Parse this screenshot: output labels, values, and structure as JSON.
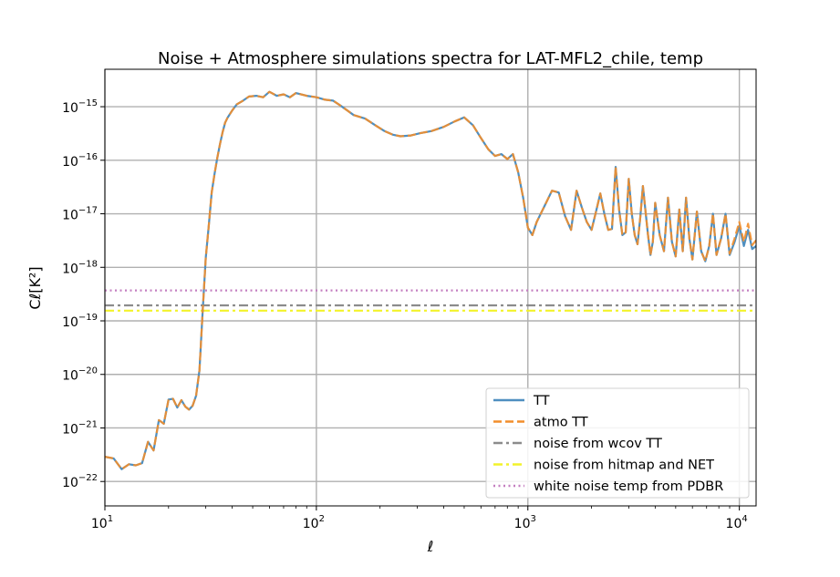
{
  "chart_data": {
    "type": "line",
    "title": "Noise + Atmosphere simulations spectra for LAT-MFL2_chile, temp",
    "xlabel": "ℓ",
    "ylabel": "Cℓ[K²]",
    "xscale": "log",
    "yscale": "log",
    "xlim": [
      10,
      12000
    ],
    "ylim": [
      3.5e-23,
      5e-15
    ],
    "grid": true,
    "legend_position": "lower-right",
    "x_ticks": [
      {
        "base": "10",
        "exp": "1",
        "value": 10
      },
      {
        "base": "10",
        "exp": "2",
        "value": 100
      },
      {
        "base": "10",
        "exp": "3",
        "value": 1000
      },
      {
        "base": "10",
        "exp": "4",
        "value": 10000
      }
    ],
    "y_ticks": [
      {
        "base": "10",
        "exp": "−22",
        "value": 1e-22
      },
      {
        "base": "10",
        "exp": "−21",
        "value": 1e-21
      },
      {
        "base": "10",
        "exp": "−20",
        "value": 1e-20
      },
      {
        "base": "10",
        "exp": "−19",
        "value": 1e-19
      },
      {
        "base": "10",
        "exp": "−18",
        "value": 1e-18
      },
      {
        "base": "10",
        "exp": "−17",
        "value": 1e-17
      },
      {
        "base": "10",
        "exp": "−16",
        "value": 1e-16
      },
      {
        "base": "10",
        "exp": "−15",
        "value": 1e-15
      }
    ],
    "series": [
      {
        "name": "TT",
        "color": "#4f8fc0",
        "style": "solid",
        "x": [
          10,
          11,
          12,
          13,
          14,
          15,
          16,
          17,
          18,
          19,
          20,
          21,
          22,
          23,
          24,
          25,
          26,
          27,
          28,
          29,
          30,
          31,
          32,
          33,
          34,
          35,
          36,
          37,
          38,
          40,
          42,
          45,
          48,
          52,
          56,
          60,
          65,
          70,
          75,
          80,
          90,
          100,
          110,
          120,
          130,
          140,
          150,
          170,
          190,
          210,
          230,
          250,
          280,
          310,
          350,
          400,
          450,
          500,
          550,
          600,
          650,
          700,
          750,
          800,
          850,
          900,
          950,
          1000,
          1050,
          1100,
          1200,
          1300,
          1400,
          1500,
          1600,
          1700,
          1800,
          1900,
          2000,
          2100,
          2200,
          2300,
          2400,
          2500,
          2600,
          2700,
          2800,
          2900,
          3000,
          3100,
          3200,
          3300,
          3400,
          3500,
          3600,
          3700,
          3800,
          3900,
          4000,
          4200,
          4400,
          4600,
          4800,
          5000,
          5200,
          5400,
          5600,
          5800,
          6000,
          6300,
          6600,
          6900,
          7200,
          7500,
          7800,
          8200,
          8600,
          9000,
          9500,
          10000,
          10500,
          11000,
          11500,
          12000
        ],
        "values": [
          2.9e-22,
          2.7e-22,
          1.7e-22,
          2.1e-22,
          2e-22,
          2.2e-22,
          5.5e-22,
          3.8e-22,
          1.4e-21,
          1.2e-21,
          3.4e-21,
          3.5e-21,
          2.4e-21,
          3.3e-21,
          2.5e-21,
          2.2e-21,
          2.6e-21,
          4e-21,
          1.2e-20,
          1.5e-19,
          1.5e-18,
          6e-18,
          2.5e-17,
          5.5e-17,
          1.1e-16,
          2e-16,
          3.3e-16,
          5e-16,
          6.2e-16,
          8.5e-16,
          1.1e-15,
          1.3e-15,
          1.55e-15,
          1.6e-15,
          1.5e-15,
          1.9e-15,
          1.6e-15,
          1.7e-15,
          1.5e-15,
          1.8e-15,
          1.6e-15,
          1.5e-15,
          1.35e-15,
          1.3e-15,
          1.05e-15,
          8.5e-16,
          7e-16,
          6e-16,
          4.5e-16,
          3.5e-16,
          3e-16,
          2.8e-16,
          2.9e-16,
          3.2e-16,
          3.5e-16,
          4.2e-16,
          5.3e-16,
          6.3e-16,
          4.5e-16,
          2.6e-16,
          1.6e-16,
          1.2e-16,
          1.3e-16,
          1.05e-16,
          1.3e-16,
          6e-17,
          2e-17,
          5.5e-18,
          4e-18,
          7e-18,
          1.4e-17,
          2.7e-17,
          2.5e-17,
          9e-18,
          5e-18,
          2.7e-17,
          1.3e-17,
          7e-18,
          5e-18,
          1.1e-17,
          2.4e-17,
          1e-17,
          5e-18,
          5.2e-18,
          7.5e-17,
          1.2e-17,
          4e-18,
          4.5e-18,
          4.5e-17,
          1e-17,
          4e-18,
          2.7e-18,
          8.5e-18,
          3.3e-17,
          1.1e-17,
          4e-18,
          1.7e-18,
          3e-18,
          1.6e-17,
          4e-18,
          2e-18,
          2e-17,
          3e-18,
          1.6e-18,
          1.2e-17,
          2e-18,
          2e-17,
          3.5e-18,
          1.4e-18,
          1.1e-17,
          2e-18,
          1.3e-18,
          2.5e-18,
          1e-17,
          1.7e-18,
          3.5e-18,
          1e-17,
          1.7e-18,
          3e-18,
          6e-18,
          2.5e-18,
          5e-18,
          2.2e-18,
          2.5e-18
        ]
      },
      {
        "name": "atmo TT",
        "color": "#f28e2b",
        "style": "dashed",
        "x": [
          10,
          11,
          12,
          13,
          14,
          15,
          16,
          17,
          18,
          19,
          20,
          21,
          22,
          23,
          24,
          25,
          26,
          27,
          28,
          29,
          30,
          31,
          32,
          33,
          34,
          35,
          36,
          37,
          38,
          40,
          42,
          45,
          48,
          52,
          56,
          60,
          65,
          70,
          75,
          80,
          90,
          100,
          110,
          120,
          130,
          140,
          150,
          170,
          190,
          210,
          230,
          250,
          280,
          310,
          350,
          400,
          450,
          500,
          550,
          600,
          650,
          700,
          750,
          800,
          850,
          900,
          950,
          1000,
          1050,
          1100,
          1200,
          1300,
          1400,
          1500,
          1600,
          1700,
          1800,
          1900,
          2000,
          2100,
          2200,
          2300,
          2400,
          2500,
          2600,
          2700,
          2800,
          2900,
          3000,
          3100,
          3200,
          3300,
          3400,
          3500,
          3600,
          3700,
          3800,
          3900,
          4000,
          4200,
          4400,
          4600,
          4800,
          5000,
          5200,
          5400,
          5600,
          5800,
          6000,
          6300,
          6600,
          6900,
          7200,
          7500,
          7800,
          8200,
          8600,
          9000,
          9500,
          10000,
          10500,
          11000,
          11500,
          12000
        ],
        "values": [
          2.9e-22,
          2.7e-22,
          1.7e-22,
          2.1e-22,
          2e-22,
          2.2e-22,
          5.5e-22,
          3.8e-22,
          1.4e-21,
          1.2e-21,
          3.4e-21,
          3.5e-21,
          2.4e-21,
          3.3e-21,
          2.5e-21,
          2.2e-21,
          2.6e-21,
          4e-21,
          1.2e-20,
          1.5e-19,
          1.5e-18,
          6e-18,
          2.5e-17,
          5.5e-17,
          1.1e-16,
          2e-16,
          3.3e-16,
          5e-16,
          6.2e-16,
          8.5e-16,
          1.1e-15,
          1.3e-15,
          1.55e-15,
          1.6e-15,
          1.5e-15,
          1.9e-15,
          1.6e-15,
          1.7e-15,
          1.5e-15,
          1.8e-15,
          1.6e-15,
          1.5e-15,
          1.35e-15,
          1.3e-15,
          1.05e-15,
          8.5e-16,
          7e-16,
          6e-16,
          4.5e-16,
          3.5e-16,
          3e-16,
          2.8e-16,
          2.9e-16,
          3.2e-16,
          3.5e-16,
          4.2e-16,
          5.3e-16,
          6.3e-16,
          4.5e-16,
          2.6e-16,
          1.6e-16,
          1.2e-16,
          1.3e-16,
          1.05e-16,
          1.3e-16,
          6e-17,
          2e-17,
          5.5e-18,
          4e-18,
          7e-18,
          1.4e-17,
          2.7e-17,
          2.5e-17,
          9e-18,
          5e-18,
          2.7e-17,
          1.3e-17,
          7e-18,
          5e-18,
          1.1e-17,
          2.4e-17,
          1e-17,
          5e-18,
          5.2e-18,
          7.5e-17,
          1.2e-17,
          4e-18,
          4.5e-18,
          4.5e-17,
          1e-17,
          4e-18,
          2.7e-18,
          8.5e-18,
          3.3e-17,
          1.1e-17,
          4e-18,
          1.7e-18,
          3e-18,
          1.6e-17,
          4e-18,
          2e-18,
          2e-17,
          3e-18,
          1.6e-18,
          1.2e-17,
          2e-18,
          2e-17,
          3.5e-18,
          1.4e-18,
          1.1e-17,
          2e-18,
          1.3e-18,
          2.5e-18,
          1e-17,
          1.7e-18,
          3.5e-18,
          1e-17,
          1.8e-18,
          3.5e-18,
          7e-18,
          3e-18,
          6.5e-18,
          2.6e-18,
          3.2e-18
        ]
      },
      {
        "name": "noise from wcov TT",
        "color": "#8c8c8c",
        "style": "dashdot",
        "x": [
          10,
          12000
        ],
        "values": [
          1.95e-19,
          1.95e-19
        ]
      },
      {
        "name": "noise from hitmap and NET",
        "color": "#f2f22a",
        "style": "dashdot",
        "x": [
          10,
          12000
        ],
        "values": [
          1.55e-19,
          1.55e-19
        ]
      },
      {
        "name": "white noise temp from PDBR",
        "color": "#c47fc0",
        "style": "dotted",
        "x": [
          10,
          12000
        ],
        "values": [
          3.7e-19,
          3.7e-19
        ]
      }
    ]
  }
}
